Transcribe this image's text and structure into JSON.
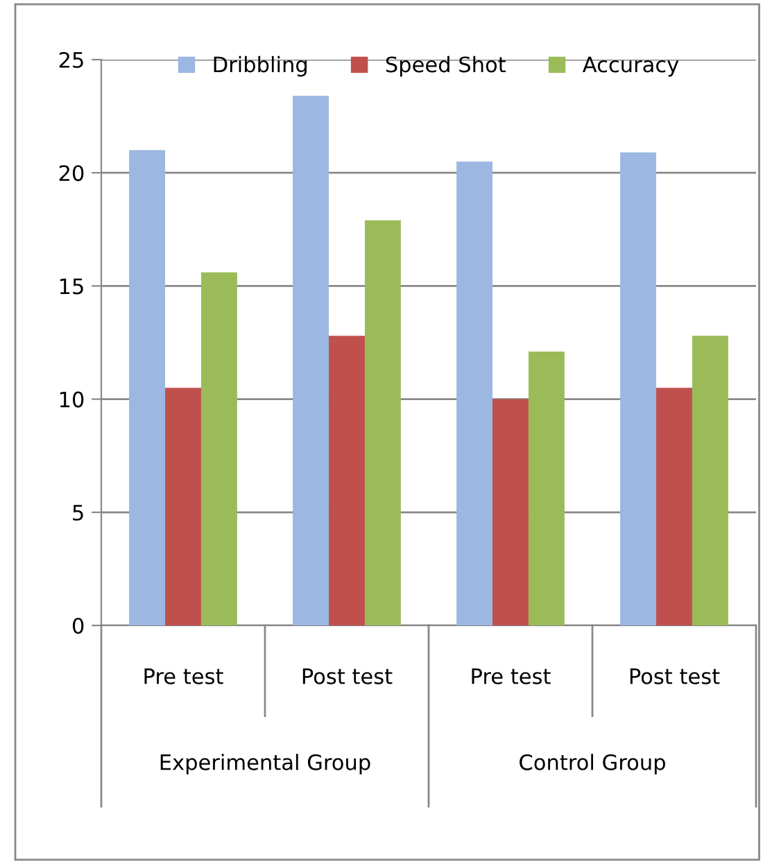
{
  "chart_data": {
    "type": "bar",
    "categories": [
      "Pre test",
      "Post test",
      "Pre test",
      "Post test"
    ],
    "series": [
      {
        "name": "Dribbling",
        "color": "#9bb7e2",
        "values": [
          21.0,
          23.4,
          20.5,
          20.9
        ]
      },
      {
        "name": "Speed Shot",
        "color": "#c0504d",
        "values": [
          10.5,
          12.8,
          10.0,
          10.5
        ]
      },
      {
        "name": "Accuracy",
        "color": "#9bbb59",
        "values": [
          15.6,
          17.9,
          12.1,
          12.8
        ]
      }
    ],
    "annotations": [
      "Experimental Group",
      "Control Group"
    ],
    "ylim": [
      0,
      25
    ],
    "yticks": [
      0,
      5,
      10,
      15,
      20,
      25
    ],
    "grid": "y",
    "legend": "top"
  }
}
